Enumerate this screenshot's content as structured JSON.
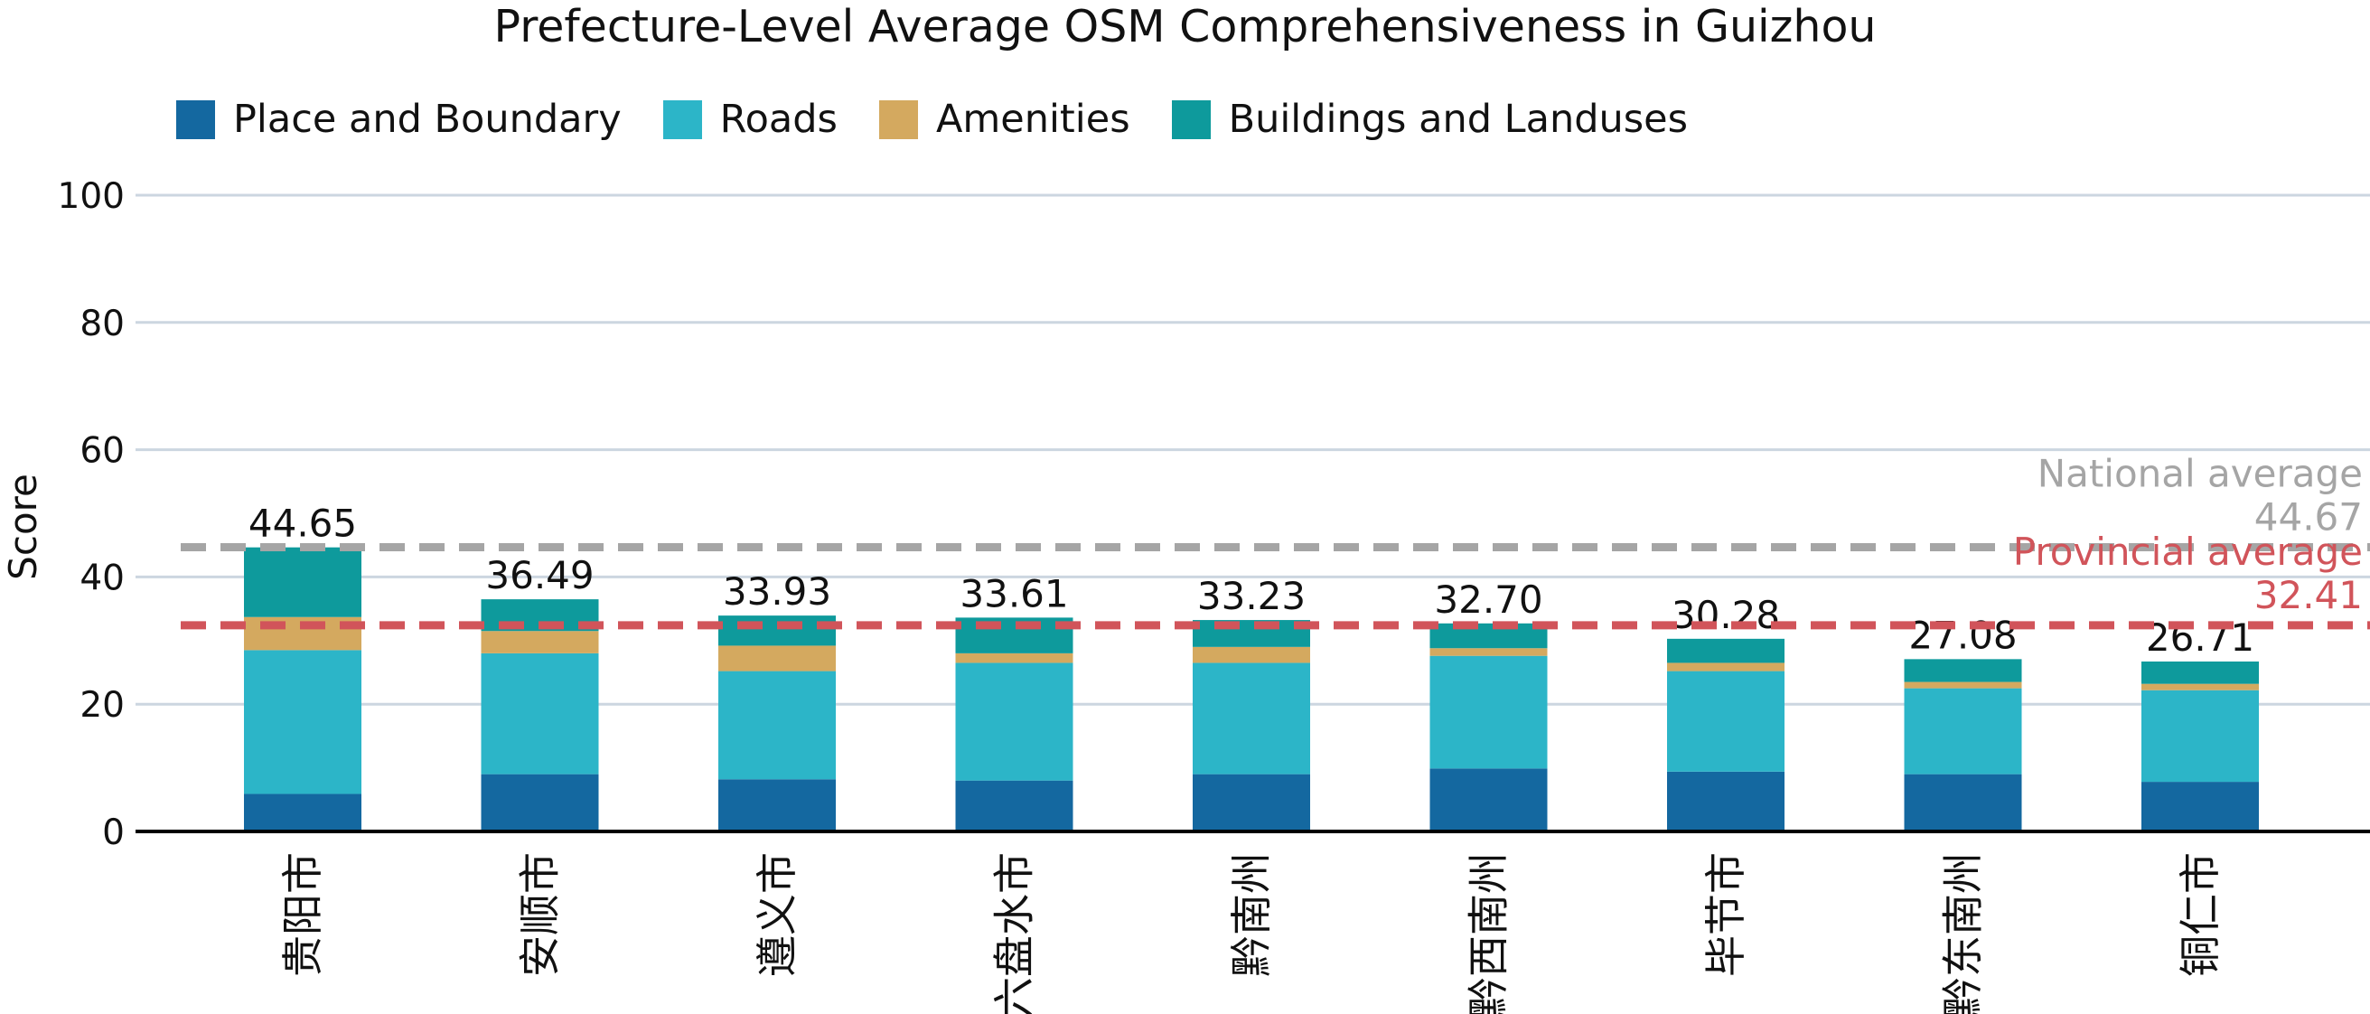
{
  "chart_data": {
    "type": "bar",
    "stacked": true,
    "title": "Prefecture-Level Average OSM Comprehensiveness in Guizhou",
    "xlabel": "",
    "ylabel": "Score",
    "ylim": [
      0,
      100
    ],
    "yticks": [
      "0",
      "20",
      "40",
      "60",
      "80",
      "100"
    ],
    "grid": true,
    "legend_position": "top-left",
    "categories": [
      "贵阳市",
      "安顺市",
      "遵义市",
      "六盘水市",
      "黔南州",
      "黔西南州",
      "毕节市",
      "黔东南州",
      "铜仁市"
    ],
    "series": [
      {
        "name": "Place and Boundary",
        "color": "#1468A0",
        "values": [
          5.9,
          9.0,
          8.2,
          8.0,
          9.0,
          9.9,
          9.4,
          9.0,
          7.8
        ]
      },
      {
        "name": "Roads",
        "color": "#2CB5C8",
        "values": [
          22.6,
          19.0,
          17.0,
          18.5,
          17.5,
          17.7,
          15.8,
          13.5,
          14.4
        ]
      },
      {
        "name": "Amenities",
        "color": "#D4A95F",
        "values": [
          5.2,
          3.5,
          4.0,
          1.5,
          2.5,
          1.2,
          1.3,
          1.0,
          1.0
        ]
      },
      {
        "name": "Buildings and Landuses",
        "color": "#0E9A9C",
        "values": [
          10.95,
          4.99,
          4.73,
          5.61,
          4.23,
          3.9,
          3.78,
          3.58,
          3.51
        ]
      }
    ],
    "totals": [
      "44.65",
      "36.49",
      "33.93",
      "33.61",
      "33.23",
      "32.70",
      "30.28",
      "27.08",
      "26.71"
    ],
    "reference_lines": [
      {
        "name": "national",
        "value": 44.67,
        "label": "National average",
        "value_label": "44.67",
        "color": "#A5A5A5"
      },
      {
        "name": "provincial",
        "value": 32.41,
        "label": "Provincial average",
        "value_label": "32.41",
        "color": "#D1545A"
      }
    ]
  }
}
